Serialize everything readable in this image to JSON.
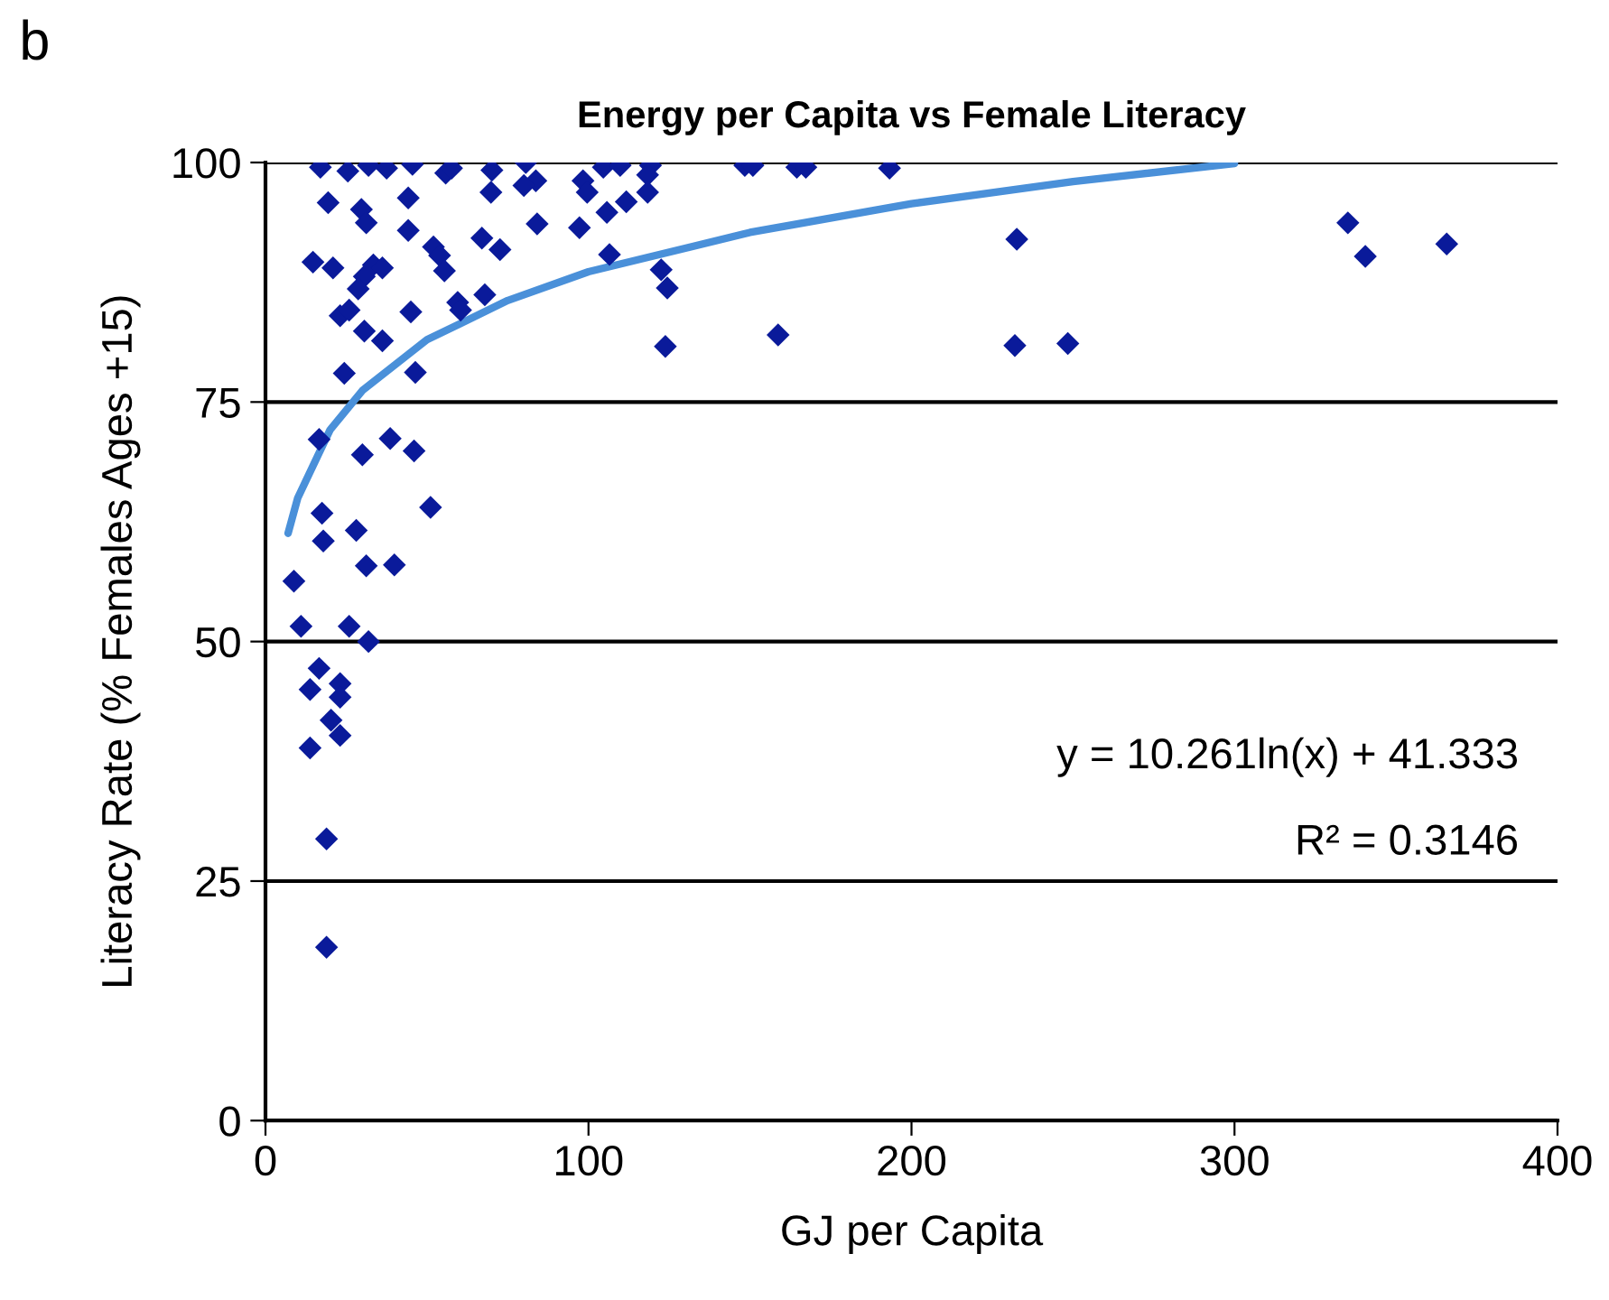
{
  "chart_data": {
    "type": "scatter",
    "title": "Energy per Capita vs Female Literacy",
    "xlabel": "GJ per Capita",
    "ylabel": "Literacy Rate (% Females Ages +15)",
    "annotations": [
      "b",
      "y = 10.261ln(x) + 41.333",
      "R² = 0.3146"
    ],
    "xlim": [
      0,
      400
    ],
    "xticks": [
      0,
      100,
      200,
      300,
      400
    ],
    "ylim": [
      0,
      100
    ],
    "yticks": [
      0,
      25,
      50,
      75,
      100
    ],
    "grid": "y",
    "legend": false,
    "series": [
      {
        "marker": "diamond",
        "color": "#0a1a9a",
        "x": [
          17.0,
          25.5,
          31.9,
          37.5,
          45.5,
          55.8,
          57.6,
          70.1,
          80.6,
          83.7,
          80.0,
          98.3,
          99.6,
          104.6,
          109.8,
          119.2,
          118.3,
          118.3,
          19.4,
          44.2,
          29.7,
          31.2,
          44.2,
          69.8,
          84.1,
          97.2,
          105.7,
          111.7,
          14.7,
          20.9,
          33.4,
          36.2,
          30.6,
          28.7,
          52.0,
          53.9,
          55.4,
          67.0,
          72.6,
          106.5,
          122.5,
          124.4,
          23.1,
          25.9,
          30.6,
          36.2,
          45.0,
          59.5,
          60.4,
          67.9,
          123.8,
          24.4,
          46.4,
          16.6,
          30.0,
          38.6,
          46.0,
          51.1,
          17.5,
          17.9,
          28.1,
          31.2,
          39.9,
          8.8,
          11.0,
          25.9,
          31.9,
          16.6,
          13.8,
          23.1,
          23.1,
          20.3,
          23.1,
          13.8,
          18.9,
          18.9,
          148.4,
          150.9,
          164.5,
          167.3,
          193.2,
          232.6,
          335.1,
          340.5,
          365.7,
          158.7,
          232.0,
          248.4
        ],
        "values": [
          99.5,
          99.1,
          99.7,
          99.4,
          99.8,
          98.9,
          99.4,
          99.2,
          100,
          98.1,
          97.6,
          98.1,
          96.9,
          99.5,
          99.7,
          99.7,
          98.7,
          96.9,
          95.8,
          96.3,
          95.1,
          93.7,
          92.9,
          96.9,
          93.6,
          93.2,
          94.8,
          95.9,
          89.6,
          89.0,
          89.3,
          89.0,
          88.1,
          86.8,
          91.2,
          90.3,
          88.7,
          92.1,
          90.9,
          90.4,
          88.8,
          86.9,
          84.0,
          84.6,
          82.4,
          81.4,
          84.4,
          85.4,
          84.6,
          86.2,
          80.8,
          78.0,
          78.1,
          71.1,
          69.5,
          71.2,
          69.9,
          64.0,
          63.4,
          60.5,
          61.6,
          57.9,
          58.0,
          56.3,
          51.6,
          51.6,
          50.0,
          47.2,
          45.0,
          45.6,
          44.2,
          41.8,
          40.2,
          38.9,
          29.4,
          18.1,
          99.7,
          99.7,
          99.5,
          99.5,
          99.4,
          92.0,
          93.7,
          90.2,
          91.5,
          82.0,
          80.9,
          81.1
        ]
      },
      {
        "type": "line",
        "color": "#4a90d9",
        "x": [
          7,
          10,
          20,
          30,
          50,
          75,
          100,
          150,
          200,
          250,
          300
        ],
        "values": [
          61.3,
          65.0,
          72.1,
          76.2,
          81.5,
          85.6,
          88.6,
          92.7,
          95.7,
          98.0,
          99.9
        ]
      }
    ]
  }
}
